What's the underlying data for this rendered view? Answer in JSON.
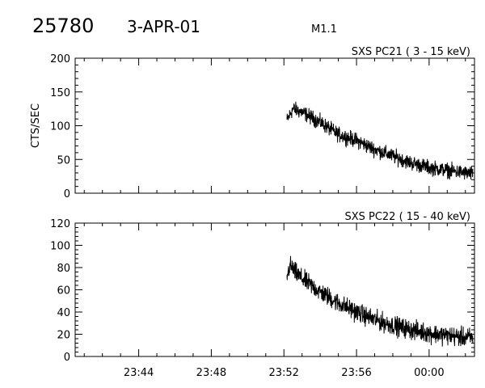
{
  "header": {
    "orbit": "25780",
    "date": "3-APR-01",
    "flare_class": "M1.1"
  },
  "style": {
    "line_color": "#000000",
    "background": "#ffffff"
  },
  "chart_data": [
    {
      "type": "line",
      "title": "SXS PC21  (  3 - 15 keV)",
      "ylabel": "CTS/SEC",
      "xlabel": "",
      "xlim": [
        "23:40:30",
        "00:02:30"
      ],
      "ylim": [
        0,
        200
      ],
      "yticks": [
        0,
        50,
        100,
        150,
        200
      ],
      "xticks": [
        "23:44",
        "23:48",
        "23:52",
        "23:56",
        "00:00"
      ],
      "series": [
        {
          "x": [
            "23:52:10",
            "23:52:30",
            "23:53:00",
            "23:54:00",
            "23:55:00",
            "23:56:00",
            "23:57:00",
            "23:58:00",
            "23:59:00",
            "00:00:00",
            "00:01:00",
            "00:02:00",
            "00:02:25"
          ],
          "values": [
            108,
            125,
            120,
            105,
            87,
            78,
            65,
            55,
            45,
            38,
            34,
            30,
            28
          ],
          "noise": 9
        }
      ]
    },
    {
      "type": "line",
      "title": "SXS PC22  ( 15 - 40 keV)",
      "ylabel": "",
      "xlabel": "",
      "xlim": [
        "23:40:30",
        "00:02:30"
      ],
      "ylim": [
        0,
        120
      ],
      "yticks": [
        0,
        20,
        40,
        60,
        80,
        100,
        120
      ],
      "xticks": [
        "23:44",
        "23:48",
        "23:52",
        "23:56",
        "00:00"
      ],
      "series": [
        {
          "x": [
            "23:52:10",
            "23:52:20",
            "23:52:40",
            "23:53:00",
            "23:54:00",
            "23:55:00",
            "23:56:00",
            "23:57:00",
            "23:58:00",
            "23:59:00",
            "00:00:00",
            "00:01:00",
            "00:02:00",
            "00:02:25"
          ],
          "values": [
            72,
            82,
            75,
            70,
            58,
            48,
            40,
            33,
            28,
            24,
            21,
            19,
            17,
            17
          ],
          "noise": 7
        }
      ]
    }
  ]
}
